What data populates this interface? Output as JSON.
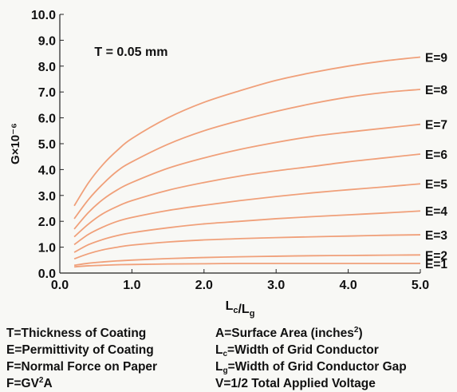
{
  "chart_data": {
    "type": "line",
    "annotation": "T = 0.05 mm",
    "ylabel": "G×10⁻⁶",
    "xlabel": "Lc/Lg",
    "xlim": [
      0,
      5
    ],
    "ylim": [
      0,
      10
    ],
    "xticks": [
      "0.0",
      "1.0",
      "2.0",
      "3.0",
      "4.0",
      "5.0"
    ],
    "yticks": [
      "0.0",
      "1.0",
      "2.0",
      "3.0",
      "4.0",
      "5.0",
      "6.0",
      "7.0",
      "8.0",
      "9.0",
      "10.0"
    ],
    "line_color": "#f0a07a",
    "grid": false,
    "x": [
      0.2,
      0.4,
      0.6,
      0.8,
      1.0,
      1.5,
      2.0,
      2.5,
      3.0,
      3.5,
      4.0,
      4.5,
      5.0
    ],
    "series": [
      {
        "name": "E=1",
        "values": [
          0.24,
          0.28,
          0.3,
          0.32,
          0.33,
          0.35,
          0.36,
          0.37,
          0.37,
          0.37,
          0.37,
          0.37,
          0.37
        ]
      },
      {
        "name": "E=2",
        "values": [
          0.3,
          0.38,
          0.43,
          0.47,
          0.5,
          0.56,
          0.6,
          0.63,
          0.65,
          0.67,
          0.68,
          0.69,
          0.7
        ]
      },
      {
        "name": "E=3",
        "values": [
          0.55,
          0.75,
          0.9,
          1.0,
          1.08,
          1.2,
          1.28,
          1.33,
          1.37,
          1.4,
          1.43,
          1.46,
          1.48
        ]
      },
      {
        "name": "E=4",
        "values": [
          0.8,
          1.1,
          1.3,
          1.45,
          1.56,
          1.75,
          1.9,
          2.0,
          2.1,
          2.18,
          2.25,
          2.32,
          2.4
        ]
      },
      {
        "name": "E=5",
        "values": [
          1.1,
          1.5,
          1.78,
          2.0,
          2.15,
          2.42,
          2.62,
          2.8,
          2.96,
          3.1,
          3.22,
          3.33,
          3.45
        ]
      },
      {
        "name": "E=6",
        "values": [
          1.4,
          1.9,
          2.3,
          2.58,
          2.8,
          3.2,
          3.5,
          3.75,
          3.95,
          4.12,
          4.3,
          4.45,
          4.6
        ]
      },
      {
        "name": "E=7",
        "values": [
          1.7,
          2.35,
          2.85,
          3.22,
          3.5,
          4.05,
          4.45,
          4.78,
          5.05,
          5.28,
          5.45,
          5.6,
          5.75
        ]
      },
      {
        "name": "E=8",
        "values": [
          2.1,
          2.85,
          3.45,
          3.95,
          4.3,
          4.98,
          5.5,
          5.9,
          6.25,
          6.55,
          6.8,
          6.98,
          7.1
        ]
      },
      {
        "name": "E=9",
        "values": [
          2.6,
          3.5,
          4.2,
          4.75,
          5.2,
          6.0,
          6.6,
          7.05,
          7.45,
          7.75,
          8.0,
          8.2,
          8.35
        ]
      }
    ]
  },
  "legend": {
    "left": [
      {
        "pre": "T=Thickness of Coating"
      },
      {
        "pre": "E=Permittivity of Coating"
      },
      {
        "pre": "F=Normal Force on Paper"
      },
      {
        "pre": "F=GV",
        "sup": "2",
        "post": "A"
      }
    ],
    "right": [
      {
        "pre": "A=Surface Area (inches",
        "sup": "2",
        "post": ")"
      },
      {
        "pre": "L",
        "sub": "c",
        "post": "=Width of Grid Conductor"
      },
      {
        "pre": "L",
        "sub": "g",
        "post": "=Width of Grid Conductor Gap"
      },
      {
        "pre": "V=1/2 Total Applied Voltage"
      }
    ]
  }
}
